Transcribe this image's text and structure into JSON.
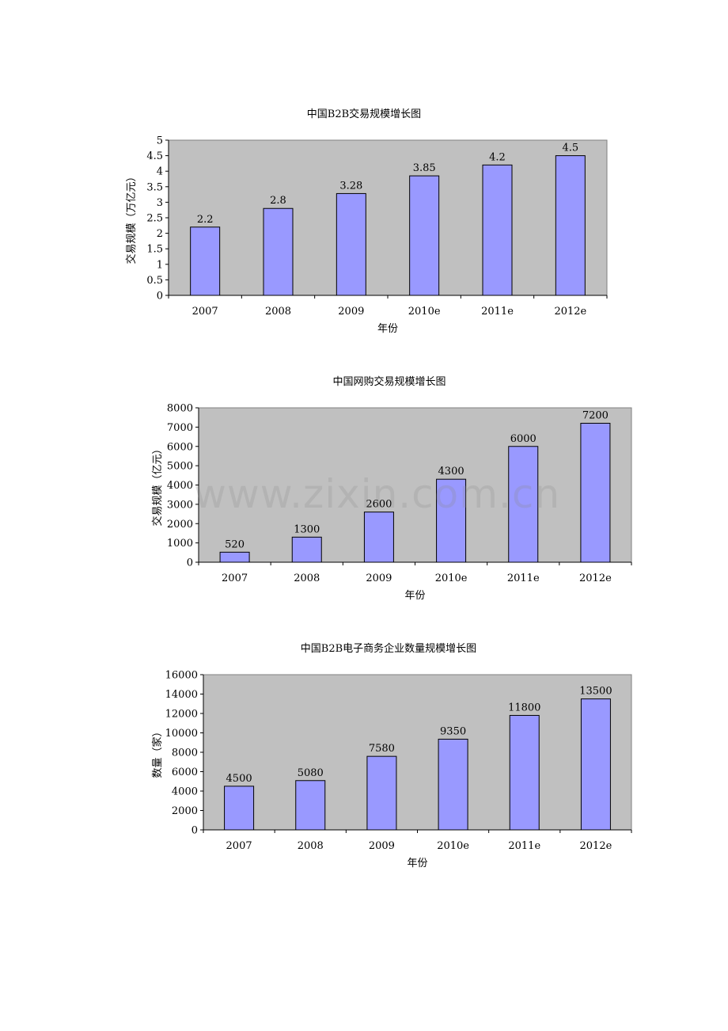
{
  "colors": {
    "plot_bg": "#c0c0c0",
    "bar": "#9999ff",
    "bar_stroke": "#000000"
  },
  "watermark": "www.zixin.com.cn",
  "chart_data": [
    {
      "type": "bar",
      "title": "中国B2B交易规模增长图",
      "xlabel": "年份",
      "ylabel": "交易规模（万亿元）",
      "categories": [
        "2007",
        "2008",
        "2009",
        "2010e",
        "2011e",
        "2012e"
      ],
      "values": [
        2.2,
        2.8,
        3.28,
        3.85,
        4.2,
        4.5
      ],
      "data_labels": [
        "2.2",
        "2.8",
        "3.28",
        "3.85",
        "4.2",
        "4.5"
      ],
      "ylim": [
        0,
        5
      ],
      "yticks": [
        "0",
        "0.5",
        "1",
        "1.5",
        "2",
        "2.5",
        "3",
        "3.5",
        "4",
        "4.5",
        "5"
      ],
      "grid": false
    },
    {
      "type": "bar",
      "title": "中国网购交易规模增长图",
      "xlabel": "年份",
      "ylabel": "交易规模（亿元）",
      "categories": [
        "2007",
        "2008",
        "2009",
        "2010e",
        "2011e",
        "2012e"
      ],
      "values": [
        520,
        1300,
        2600,
        4300,
        6000,
        7200
      ],
      "data_labels": [
        "520",
        "1300",
        "2600",
        "4300",
        "6000",
        "7200"
      ],
      "ylim": [
        0,
        8000
      ],
      "yticks": [
        "0",
        "1000",
        "2000",
        "3000",
        "4000",
        "5000",
        "6000",
        "7000",
        "8000"
      ],
      "grid": false
    },
    {
      "type": "bar",
      "title": "中国B2B电子商务企业数量规模增长图",
      "xlabel": "年份",
      "ylabel": "数量（家）",
      "categories": [
        "2007",
        "2008",
        "2009",
        "2010e",
        "2011e",
        "2012e"
      ],
      "values": [
        4500,
        5080,
        7580,
        9350,
        11800,
        13500
      ],
      "data_labels": [
        "4500",
        "5080",
        "7580",
        "9350",
        "11800",
        "13500"
      ],
      "ylim": [
        0,
        16000
      ],
      "yticks": [
        "0",
        "2000",
        "4000",
        "6000",
        "8000",
        "10000",
        "12000",
        "14000",
        "16000"
      ],
      "grid": false
    }
  ]
}
